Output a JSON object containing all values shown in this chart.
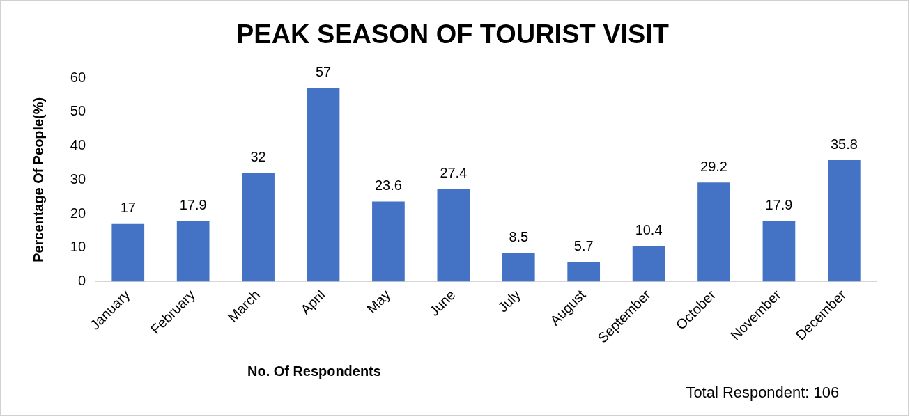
{
  "chart_data": {
    "type": "bar",
    "title": "PEAK SEASON OF TOURIST VISIT",
    "xlabel": "No. Of Respondents",
    "ylabel": "Percentage Of People(%)",
    "categories": [
      "January",
      "February",
      "March",
      "April",
      "May",
      "June",
      "July",
      "August",
      "September",
      "October",
      "November",
      "December"
    ],
    "values": [
      17,
      17.9,
      32,
      57,
      23.6,
      27.4,
      8.5,
      5.7,
      10.4,
      29.2,
      17.9,
      35.8
    ],
    "color": "#4472c4",
    "ylim": [
      0,
      60
    ],
    "yticks": [
      0,
      10,
      20,
      30,
      40,
      50,
      60
    ],
    "grid": false,
    "legend": false,
    "data_labels": true,
    "annotations": [
      "Total Respondent: 106"
    ]
  }
}
